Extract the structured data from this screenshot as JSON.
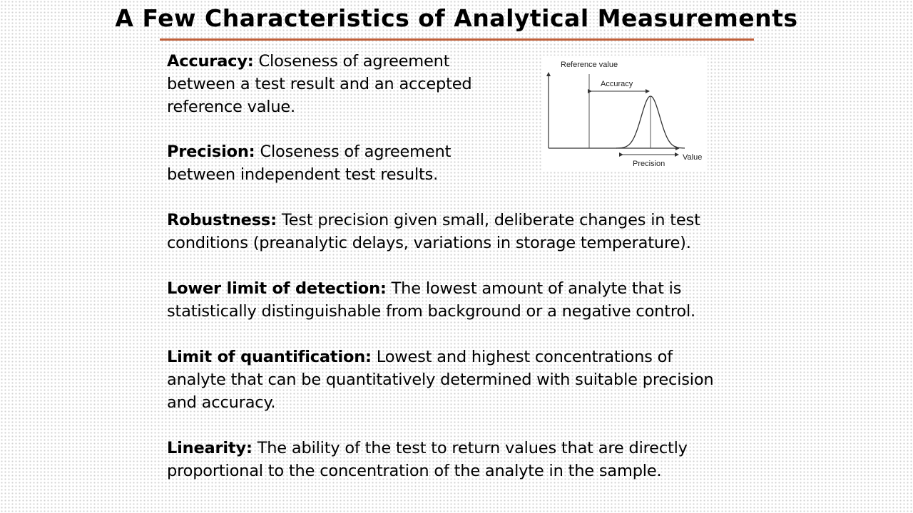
{
  "title": "A Few Characteristics of Analytical Measurements",
  "definitions": [
    {
      "term": "Accuracy:",
      "line1": "Closeness of agreement",
      "line2": "between a test result and an accepted",
      "line3": "reference value."
    },
    {
      "term": "Precision:",
      "line1": "Closeness of agreement",
      "line2": "between independent test results."
    },
    {
      "term": "Robustness:",
      "line1": "Test precision given small, deliberate changes in test",
      "line2": "conditions (preanalytic delays, variations in storage temperature)."
    },
    {
      "term": "Lower limit of detection:",
      "line1": "The lowest amount of analyte that is",
      "line2": "statistically distinguishable from background or a negative control."
    },
    {
      "term": "Limit of quantification:",
      "line1": "Lowest and highest concentrations of",
      "line2": "analyte that can be quantitatively determined with suitable precision",
      "line3": "and accuracy."
    },
    {
      "term": "Linearity:",
      "line1": "The ability of the test to return values that are directly",
      "line2": "proportional to the concentration of the analyte in the sample."
    }
  ],
  "figure": {
    "reference_label": "Reference value",
    "accuracy_label": "Accuracy",
    "precision_label": "Precision",
    "value_label": "Value"
  },
  "colors": {
    "title_rule": "#c0603a"
  }
}
